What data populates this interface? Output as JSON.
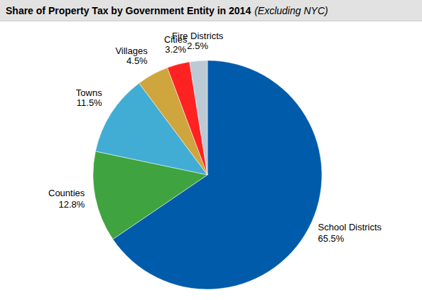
{
  "chart_data": {
    "type": "pie",
    "title": "Share of Property Tax by Government Entity in 2014",
    "subtitle": "(Excluding NYC)",
    "categories": [
      "School Districts",
      "Counties",
      "Towns",
      "Villages",
      "Cities",
      "Fire Districts"
    ],
    "values": [
      65.5,
      12.8,
      11.5,
      4.5,
      3.2,
      2.5
    ],
    "value_labels": [
      "65.5%",
      "12.8%",
      "11.5%",
      "4.5%",
      "3.2%",
      "2.5%"
    ],
    "colors": [
      "#005BAA",
      "#3FA33F",
      "#41ADD4",
      "#CFA53D",
      "#FF2222",
      "#BCCAD6"
    ],
    "data_labels": true
  }
}
